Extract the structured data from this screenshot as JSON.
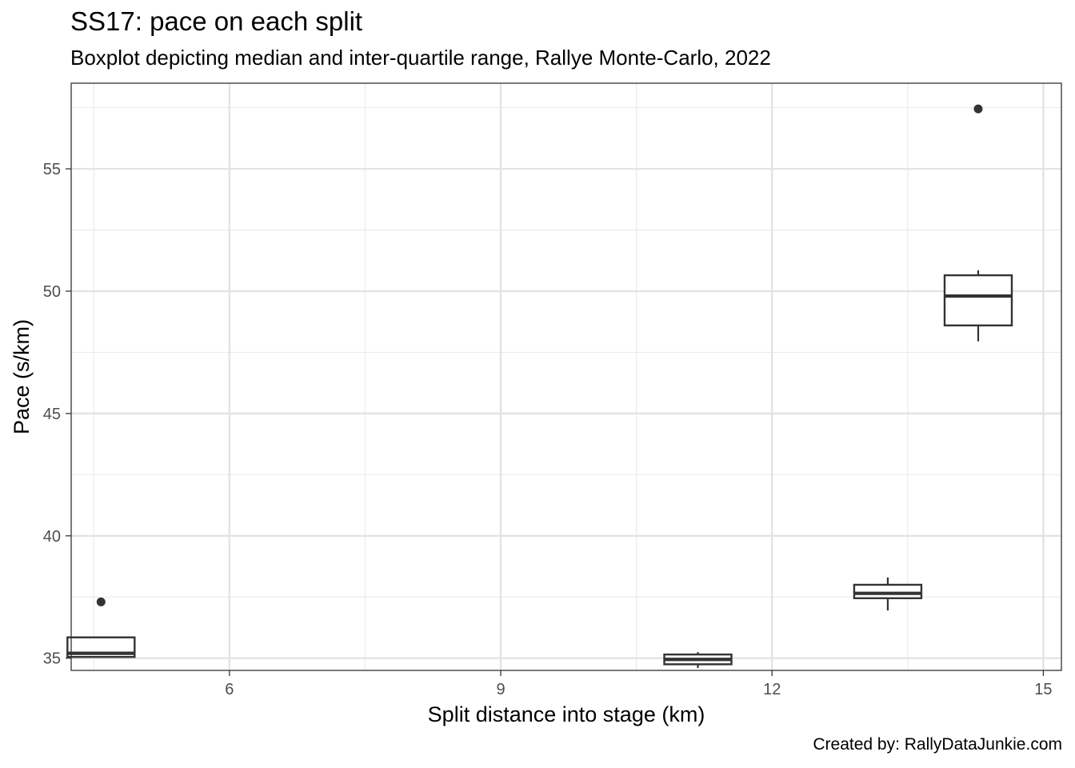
{
  "chart_data": {
    "type": "boxplot",
    "title": "SS17: pace on each split",
    "subtitle": "Boxplot depicting median and inter-quartile range, Rallye Monte-Carlo, 2022",
    "xlabel": "Split distance into stage (km)",
    "ylabel": "Pace (s/km)",
    "caption": "Created by: RallyDataJunkie.com",
    "xlim": [
      4.25,
      15.2
    ],
    "ylim": [
      34.5,
      58.5
    ],
    "x_ticks": [
      6,
      9,
      12,
      15
    ],
    "y_ticks": [
      35,
      40,
      45,
      50,
      55
    ],
    "x_minor_ticks": [
      4.5,
      7.5,
      10.5,
      13.5
    ],
    "y_minor_ticks": [
      37.5,
      42.5,
      47.5,
      52.5,
      57.5
    ],
    "grid": true,
    "legend": "none",
    "boxes": [
      {
        "x": 4.58,
        "whisker_low": 35.05,
        "q1": 35.05,
        "median": 35.2,
        "q3": 35.85,
        "whisker_high": 35.85,
        "outliers": [
          37.3
        ]
      },
      {
        "x": 11.18,
        "whisker_low": 34.6,
        "q1": 34.75,
        "median": 34.95,
        "q3": 35.15,
        "whisker_high": 35.25,
        "outliers": []
      },
      {
        "x": 13.28,
        "whisker_low": 36.95,
        "q1": 37.45,
        "median": 37.65,
        "q3": 38.0,
        "whisker_high": 38.3,
        "outliers": []
      },
      {
        "x": 14.28,
        "whisker_low": 47.95,
        "q1": 48.6,
        "median": 49.8,
        "q3": 50.65,
        "whisker_high": 50.85,
        "outliers": [
          57.45
        ]
      }
    ]
  }
}
